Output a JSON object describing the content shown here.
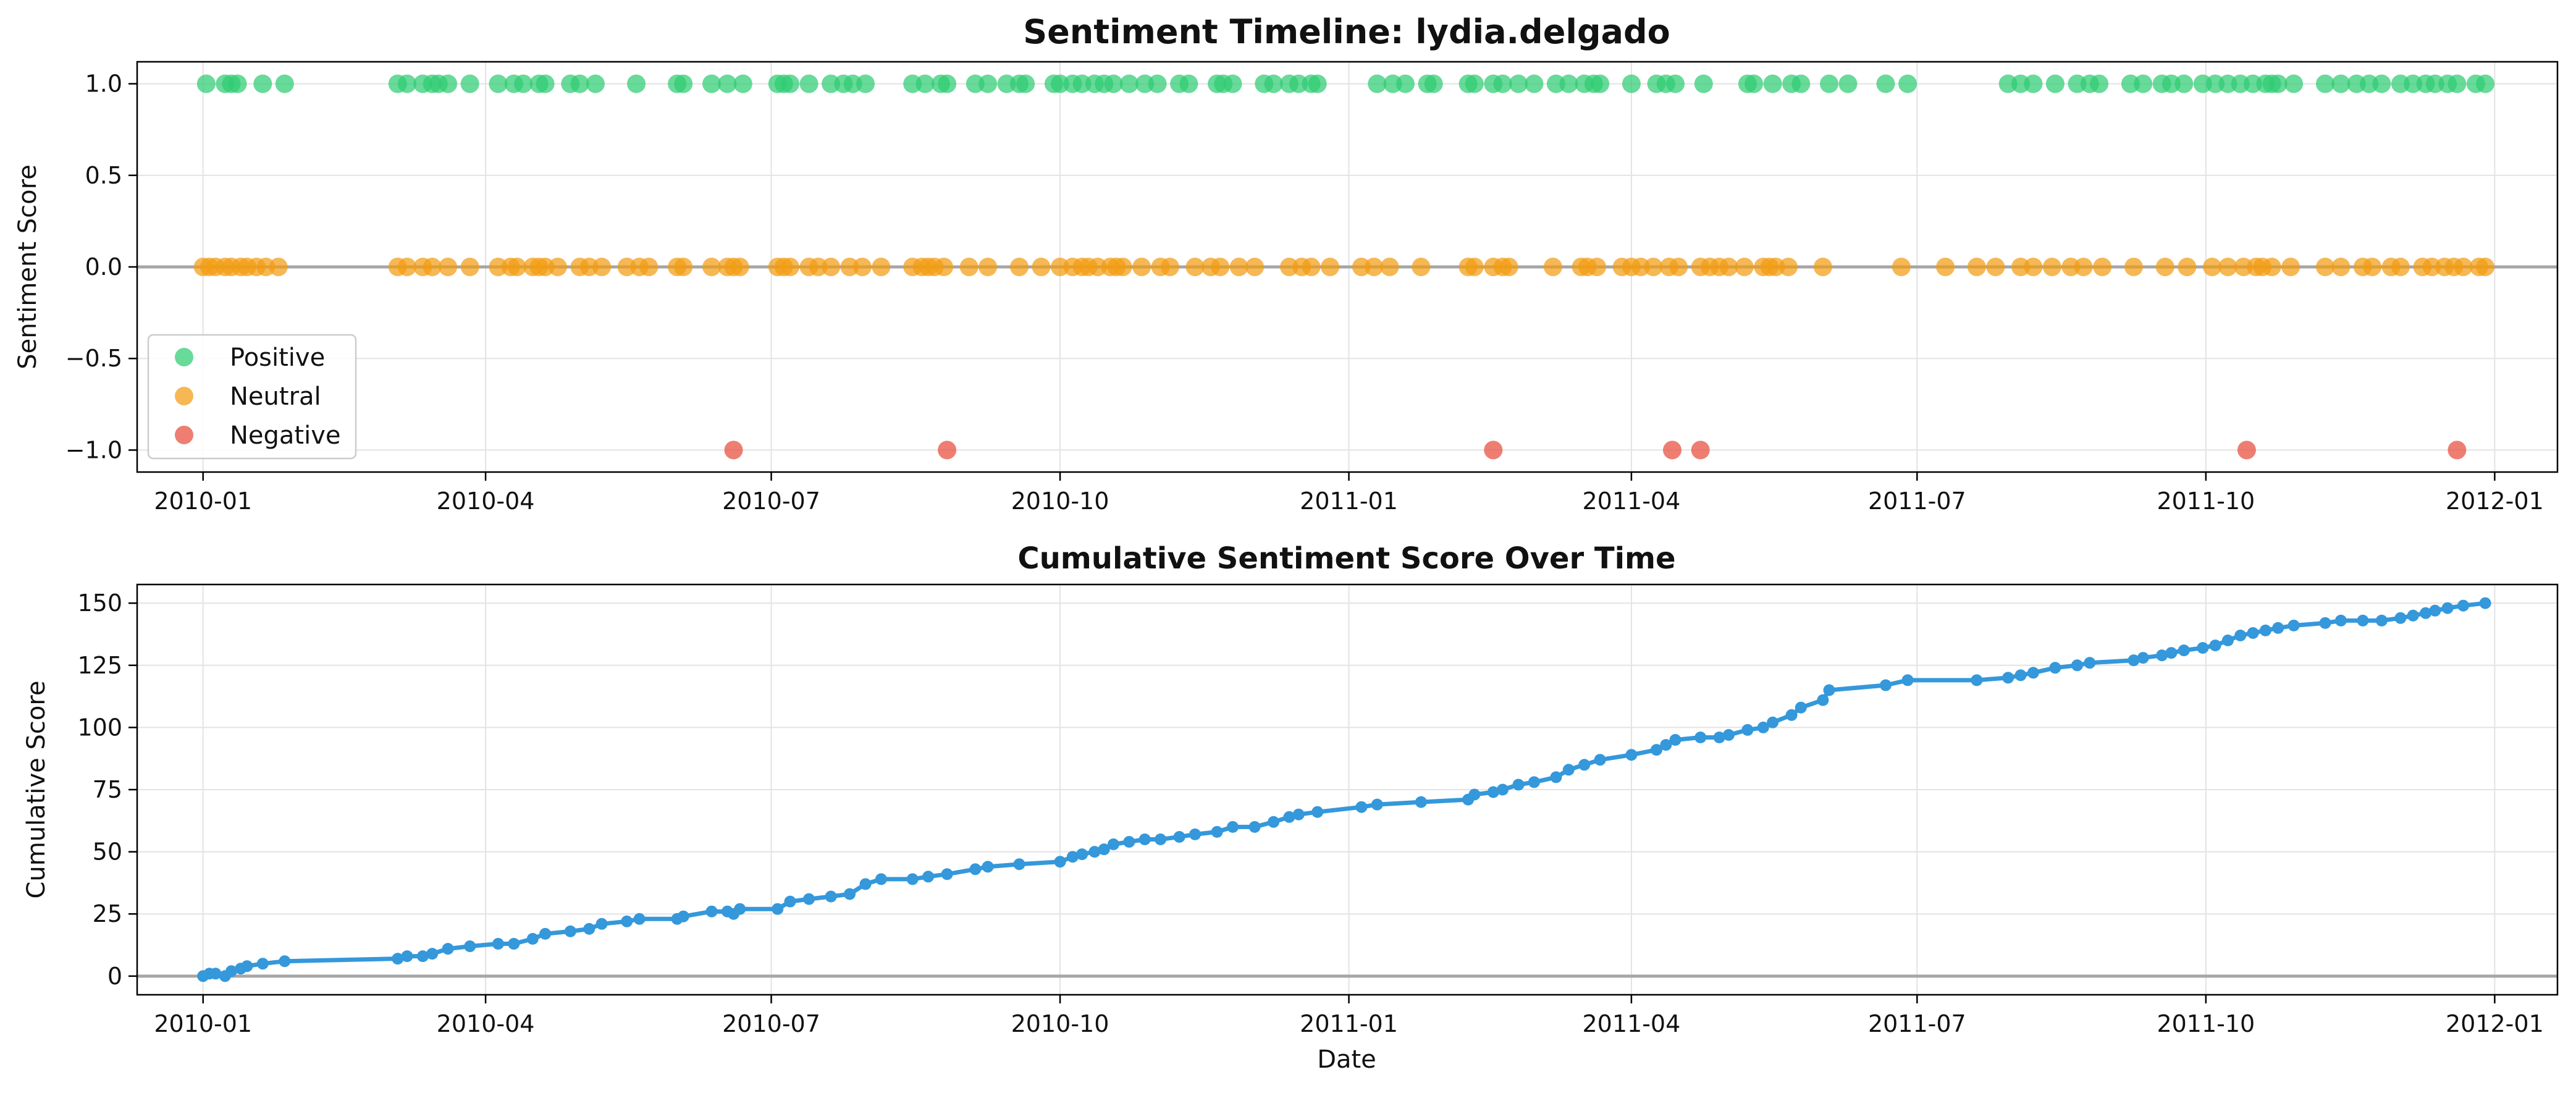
{
  "chart_data": [
    {
      "type": "scatter",
      "title": "Sentiment Timeline: lydia.delgado",
      "xlabel": "",
      "ylabel": "Sentiment Score",
      "x_ticks": [
        "2010-01",
        "2010-04",
        "2010-07",
        "2010-10",
        "2011-01",
        "2011-04",
        "2011-07",
        "2011-10",
        "2012-01"
      ],
      "y_ticks": [
        "1.0",
        "0.5",
        "0.0",
        "−0.5",
        "−1.0"
      ],
      "ylim": [
        -1.12,
        1.12
      ],
      "xlim": [
        "2009-12-11",
        "2012-01-21"
      ],
      "grid": true,
      "reference_line_y": 0,
      "legend_position": "lower-left",
      "series": [
        {
          "name": "Positive",
          "color": "#2ecc71",
          "y": 1,
          "x": [
            "2010-01-02",
            "2010-01-08",
            "2010-01-10",
            "2010-01-12",
            "2010-01-20",
            "2010-01-27",
            "2010-03-04",
            "2010-03-07",
            "2010-03-12",
            "2010-03-15",
            "2010-03-17",
            "2010-03-20",
            "2010-03-27",
            "2010-04-05",
            "2010-04-10",
            "2010-04-13",
            "2010-04-18",
            "2010-04-20",
            "2010-04-28",
            "2010-05-01",
            "2010-05-06",
            "2010-05-19",
            "2010-06-01",
            "2010-06-03",
            "2010-06-12",
            "2010-06-17",
            "2010-06-22",
            "2010-07-03",
            "2010-07-05",
            "2010-07-07",
            "2010-07-13",
            "2010-07-20",
            "2010-07-24",
            "2010-07-27",
            "2010-07-31",
            "2010-08-15",
            "2010-08-19",
            "2010-08-24",
            "2010-08-26",
            "2010-09-04",
            "2010-09-08",
            "2010-09-14",
            "2010-09-18",
            "2010-09-20",
            "2010-09-29",
            "2010-10-01",
            "2010-10-05",
            "2010-10-08",
            "2010-10-12",
            "2010-10-15",
            "2010-10-18",
            "2010-10-23",
            "2010-10-28",
            "2010-11-01",
            "2010-11-08",
            "2010-11-11",
            "2010-11-20",
            "2010-11-22",
            "2010-11-25",
            "2010-12-05",
            "2010-12-08",
            "2010-12-13",
            "2010-12-16",
            "2010-12-20",
            "2010-12-22",
            "2011-01-10",
            "2011-01-15",
            "2011-01-19",
            "2011-01-26",
            "2011-01-28",
            "2011-02-08",
            "2011-02-10",
            "2011-02-16",
            "2011-02-19",
            "2011-02-24",
            "2011-03-01",
            "2011-03-08",
            "2011-03-12",
            "2011-03-17",
            "2011-03-20",
            "2011-03-22",
            "2011-04-01",
            "2011-04-09",
            "2011-04-12",
            "2011-04-15",
            "2011-04-24",
            "2011-05-08",
            "2011-05-10",
            "2011-05-16",
            "2011-05-22",
            "2011-05-25",
            "2011-06-03",
            "2011-06-09",
            "2011-06-21",
            "2011-06-28",
            "2011-07-30",
            "2011-08-03",
            "2011-08-07",
            "2011-08-14",
            "2011-08-21",
            "2011-08-25",
            "2011-08-28",
            "2011-09-07",
            "2011-09-11",
            "2011-09-17",
            "2011-09-20",
            "2011-09-24",
            "2011-09-30",
            "2011-10-04",
            "2011-10-08",
            "2011-10-12",
            "2011-10-16",
            "2011-10-20",
            "2011-10-22",
            "2011-10-24",
            "2011-10-29",
            "2011-11-08",
            "2011-11-13",
            "2011-11-18",
            "2011-11-22",
            "2011-11-26",
            "2011-12-02",
            "2011-12-06",
            "2011-12-10",
            "2011-12-13",
            "2011-12-17",
            "2011-12-20",
            "2011-12-26",
            "2011-12-29"
          ]
        },
        {
          "name": "Neutral",
          "color": "#f39c12",
          "y": 0,
          "x": [
            "2010-01-01",
            "2010-01-03",
            "2010-01-05",
            "2010-01-08",
            "2010-01-10",
            "2010-01-13",
            "2010-01-15",
            "2010-01-18",
            "2010-01-21",
            "2010-01-25",
            "2010-03-04",
            "2010-03-07",
            "2010-03-12",
            "2010-03-15",
            "2010-03-20",
            "2010-03-27",
            "2010-04-05",
            "2010-04-09",
            "2010-04-11",
            "2010-04-16",
            "2010-04-18",
            "2010-04-20",
            "2010-04-24",
            "2010-05-01",
            "2010-05-04",
            "2010-05-08",
            "2010-05-16",
            "2010-05-20",
            "2010-05-23",
            "2010-06-01",
            "2010-06-03",
            "2010-06-12",
            "2010-06-17",
            "2010-06-19",
            "2010-06-21",
            "2010-07-03",
            "2010-07-05",
            "2010-07-07",
            "2010-07-13",
            "2010-07-16",
            "2010-07-20",
            "2010-07-26",
            "2010-07-30",
            "2010-08-05",
            "2010-08-15",
            "2010-08-18",
            "2010-08-20",
            "2010-08-22",
            "2010-08-25",
            "2010-09-02",
            "2010-09-08",
            "2010-09-18",
            "2010-09-25",
            "2010-10-01",
            "2010-10-05",
            "2010-10-08",
            "2010-10-10",
            "2010-10-13",
            "2010-10-17",
            "2010-10-19",
            "2010-10-21",
            "2010-10-27",
            "2010-11-02",
            "2010-11-05",
            "2010-11-13",
            "2010-11-18",
            "2010-11-21",
            "2010-11-27",
            "2010-12-02",
            "2010-12-13",
            "2010-12-17",
            "2010-12-20",
            "2010-12-26",
            "2011-01-05",
            "2011-01-09",
            "2011-01-14",
            "2011-01-24",
            "2011-02-08",
            "2011-02-10",
            "2011-02-16",
            "2011-02-19",
            "2011-02-21",
            "2011-03-07",
            "2011-03-16",
            "2011-03-18",
            "2011-03-21",
            "2011-03-29",
            "2011-04-01",
            "2011-04-04",
            "2011-04-08",
            "2011-04-13",
            "2011-04-16",
            "2011-04-23",
            "2011-04-26",
            "2011-04-29",
            "2011-05-02",
            "2011-05-07",
            "2011-05-13",
            "2011-05-15",
            "2011-05-17",
            "2011-05-21",
            "2011-06-01",
            "2011-06-26",
            "2011-07-10",
            "2011-07-20",
            "2011-07-26",
            "2011-08-03",
            "2011-08-07",
            "2011-08-13",
            "2011-08-19",
            "2011-08-23",
            "2011-08-29",
            "2011-09-08",
            "2011-09-18",
            "2011-09-25",
            "2011-10-03",
            "2011-10-08",
            "2011-10-13",
            "2011-10-17",
            "2011-10-19",
            "2011-10-22",
            "2011-10-28",
            "2011-11-08",
            "2011-11-13",
            "2011-11-20",
            "2011-11-23",
            "2011-11-29",
            "2011-12-02",
            "2011-12-09",
            "2011-12-12",
            "2011-12-16",
            "2011-12-19",
            "2011-12-22",
            "2011-12-27",
            "2011-12-29"
          ]
        },
        {
          "name": "Negative",
          "color": "#e74c3c",
          "y": -1,
          "x": [
            "2010-06-19",
            "2010-08-26",
            "2011-02-16",
            "2011-04-14",
            "2011-04-23",
            "2011-10-14",
            "2011-12-20"
          ]
        }
      ]
    },
    {
      "type": "line",
      "title": "Cumulative Sentiment Score Over Time",
      "xlabel": "Date",
      "ylabel": "Cumulative Score",
      "x_ticks": [
        "2010-01",
        "2010-04",
        "2010-07",
        "2010-10",
        "2011-01",
        "2011-04",
        "2011-07",
        "2011-10",
        "2012-01"
      ],
      "y_ticks": [
        "150",
        "125",
        "100",
        "75",
        "50",
        "25",
        "0"
      ],
      "ylim": [
        -7.5,
        157.5
      ],
      "xlim": [
        "2009-12-11",
        "2012-01-21"
      ],
      "grid": true,
      "reference_line_y": 0,
      "series": [
        {
          "color": "#3498db",
          "x": [
            "2010-01-01",
            "2010-01-03",
            "2010-01-05",
            "2010-01-08",
            "2010-01-10",
            "2010-01-13",
            "2010-01-15",
            "2010-01-20",
            "2010-01-27",
            "2010-03-04",
            "2010-03-07",
            "2010-03-12",
            "2010-03-15",
            "2010-03-20",
            "2010-03-27",
            "2010-04-05",
            "2010-04-10",
            "2010-04-16",
            "2010-04-20",
            "2010-04-28",
            "2010-05-04",
            "2010-05-08",
            "2010-05-16",
            "2010-05-20",
            "2010-06-01",
            "2010-06-03",
            "2010-06-12",
            "2010-06-17",
            "2010-06-19",
            "2010-06-21",
            "2010-07-03",
            "2010-07-07",
            "2010-07-13",
            "2010-07-20",
            "2010-07-26",
            "2010-07-31",
            "2010-08-05",
            "2010-08-15",
            "2010-08-20",
            "2010-08-26",
            "2010-09-04",
            "2010-09-08",
            "2010-09-18",
            "2010-10-01",
            "2010-10-05",
            "2010-10-08",
            "2010-10-12",
            "2010-10-15",
            "2010-10-18",
            "2010-10-23",
            "2010-10-28",
            "2010-11-02",
            "2010-11-08",
            "2010-11-13",
            "2010-11-20",
            "2010-11-25",
            "2010-12-02",
            "2010-12-08",
            "2010-12-13",
            "2010-12-16",
            "2010-12-22",
            "2011-01-05",
            "2011-01-10",
            "2011-01-24",
            "2011-02-08",
            "2011-02-10",
            "2011-02-16",
            "2011-02-19",
            "2011-02-24",
            "2011-03-01",
            "2011-03-08",
            "2011-03-12",
            "2011-03-17",
            "2011-03-22",
            "2011-04-01",
            "2011-04-09",
            "2011-04-12",
            "2011-04-15",
            "2011-04-23",
            "2011-04-29",
            "2011-05-02",
            "2011-05-08",
            "2011-05-13",
            "2011-05-16",
            "2011-05-22",
            "2011-05-25",
            "2011-06-01",
            "2011-06-03",
            "2011-06-21",
            "2011-06-28",
            "2011-07-20",
            "2011-07-30",
            "2011-08-03",
            "2011-08-07",
            "2011-08-14",
            "2011-08-21",
            "2011-08-25",
            "2011-09-08",
            "2011-09-11",
            "2011-09-17",
            "2011-09-20",
            "2011-09-24",
            "2011-09-30",
            "2011-10-04",
            "2011-10-08",
            "2011-10-12",
            "2011-10-16",
            "2011-10-20",
            "2011-10-24",
            "2011-10-29",
            "2011-11-08",
            "2011-11-13",
            "2011-11-20",
            "2011-11-26",
            "2011-12-02",
            "2011-12-06",
            "2011-12-10",
            "2011-12-13",
            "2011-12-17",
            "2011-12-22",
            "2011-12-29"
          ],
          "y": [
            0,
            1,
            1,
            0,
            2,
            3,
            4,
            5,
            6,
            7,
            8,
            8,
            9,
            11,
            12,
            13,
            13,
            15,
            17,
            18,
            19,
            21,
            22,
            23,
            23,
            24,
            26,
            26,
            25,
            27,
            27,
            30,
            31,
            32,
            33,
            37,
            39,
            39,
            40,
            41,
            43,
            44,
            45,
            46,
            48,
            49,
            50,
            51,
            53,
            54,
            55,
            55,
            56,
            57,
            58,
            60,
            60,
            62,
            64,
            65,
            66,
            68,
            69,
            70,
            71,
            73,
            74,
            75,
            77,
            78,
            80,
            83,
            85,
            87,
            89,
            91,
            93,
            95,
            96,
            96,
            97,
            99,
            100,
            102,
            105,
            108,
            111,
            115,
            117,
            119,
            119,
            120,
            121,
            122,
            124,
            125,
            126,
            127,
            128,
            129,
            130,
            131,
            132,
            133,
            135,
            137,
            138,
            139,
            140,
            141,
            142,
            143,
            143,
            143,
            144,
            145,
            146,
            147,
            148,
            149,
            150
          ]
        }
      ]
    }
  ]
}
